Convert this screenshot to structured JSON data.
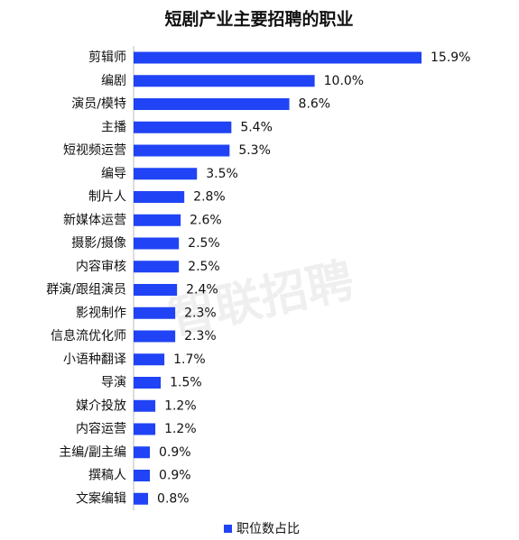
{
  "chart_data": {
    "type": "bar",
    "orientation": "horizontal",
    "title": "短剧产业主要招聘的职业",
    "watermark": "智联招聘",
    "categories": [
      "剪辑师",
      "编剧",
      "演员/模特",
      "主播",
      "短视频运营",
      "编导",
      "制片人",
      "新媒体运营",
      "摄影/摄像",
      "内容审核",
      "群演/跟组演员",
      "影视制作",
      "信息流优化师",
      "小语种翻译",
      "导演",
      "媒介投放",
      "内容运营",
      "主编/副主编",
      "撰稿人",
      "文案编辑"
    ],
    "series": [
      {
        "name": "职位数占比",
        "color": "#2043f5",
        "values": [
          15.9,
          10.0,
          8.6,
          5.4,
          5.3,
          3.5,
          2.8,
          2.6,
          2.5,
          2.5,
          2.4,
          2.3,
          2.3,
          1.7,
          1.5,
          1.2,
          1.2,
          0.9,
          0.9,
          0.8
        ],
        "value_labels": [
          "15.9%",
          "10.0%",
          "8.6%",
          "5.4%",
          "5.3%",
          "3.5%",
          "2.8%",
          "2.6%",
          "2.5%",
          "2.5%",
          "2.4%",
          "2.3%",
          "2.3%",
          "1.7%",
          "1.5%",
          "1.2%",
          "1.2%",
          "0.9%",
          "0.9%",
          "0.8%"
        ]
      }
    ],
    "legend": "bottom"
  }
}
